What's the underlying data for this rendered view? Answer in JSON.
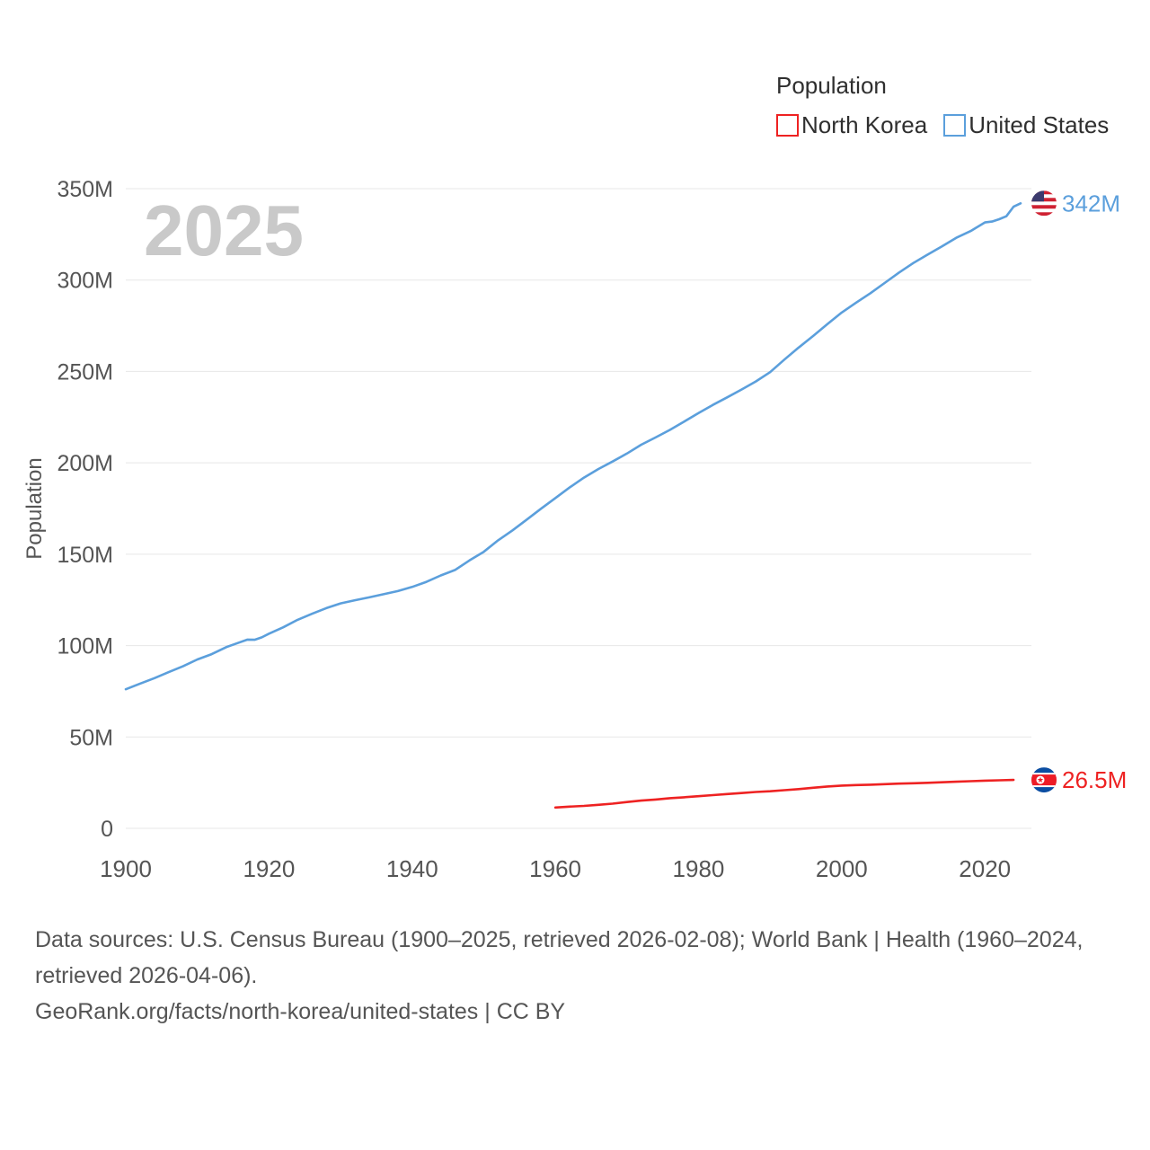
{
  "legend": {
    "title": "Population",
    "items": [
      {
        "label": "North Korea",
        "color": "#ee2222"
      },
      {
        "label": "United States",
        "color": "#5b9fdc"
      }
    ]
  },
  "footer": {
    "sources": "Data sources: U.S. Census Bureau (1900–2025, retrieved 2026-02-08); World Bank | Health (1960–2024, retrieved 2026-04-06).",
    "attribution": "GeoRank.org/facts/north-korea/united-states | CC BY"
  },
  "chart_data": {
    "type": "line",
    "title": "",
    "xlabel": "",
    "ylabel": "Population",
    "year_watermark": "2025",
    "legend_title": "Population",
    "legend_position": "top-right",
    "grid": true,
    "y_unit": "millions",
    "xlim": [
      1900,
      2026.5
    ],
    "ylim": [
      0,
      350
    ],
    "x_ticks": [
      1900,
      1920,
      1940,
      1960,
      1980,
      2000,
      2020
    ],
    "y_ticks": [
      {
        "value": 0,
        "label": "0"
      },
      {
        "value": 50,
        "label": "50M"
      },
      {
        "value": 100,
        "label": "100M"
      },
      {
        "value": 150,
        "label": "150M"
      },
      {
        "value": 200,
        "label": "200M"
      },
      {
        "value": 250,
        "label": "250M"
      },
      {
        "value": 300,
        "label": "300M"
      },
      {
        "value": 350,
        "label": "350M"
      }
    ],
    "series": [
      {
        "id": "north-korea",
        "name": "North Korea",
        "color": "#ee2222",
        "end_label": "26.5M",
        "points": [
          [
            1960,
            11.4
          ],
          [
            1962,
            11.9
          ],
          [
            1964,
            12.3
          ],
          [
            1966,
            12.9
          ],
          [
            1968,
            13.5
          ],
          [
            1970,
            14.4
          ],
          [
            1972,
            15.2
          ],
          [
            1974,
            15.8
          ],
          [
            1976,
            16.5
          ],
          [
            1978,
            17.0
          ],
          [
            1980,
            17.6
          ],
          [
            1982,
            18.2
          ],
          [
            1984,
            18.8
          ],
          [
            1986,
            19.3
          ],
          [
            1988,
            19.9
          ],
          [
            1990,
            20.3
          ],
          [
            1992,
            20.9
          ],
          [
            1994,
            21.5
          ],
          [
            1996,
            22.2
          ],
          [
            1998,
            22.9
          ],
          [
            2000,
            23.4
          ],
          [
            2002,
            23.7
          ],
          [
            2004,
            23.9
          ],
          [
            2006,
            24.2
          ],
          [
            2008,
            24.5
          ],
          [
            2010,
            24.7
          ],
          [
            2012,
            24.9
          ],
          [
            2014,
            25.2
          ],
          [
            2016,
            25.5
          ],
          [
            2018,
            25.8
          ],
          [
            2020,
            26.1
          ],
          [
            2022,
            26.3
          ],
          [
            2024,
            26.5
          ]
        ]
      },
      {
        "id": "united-states",
        "name": "United States",
        "color": "#5b9fdc",
        "end_label": "342M",
        "points": [
          [
            1900,
            76.1
          ],
          [
            1902,
            79.2
          ],
          [
            1904,
            82.2
          ],
          [
            1906,
            85.5
          ],
          [
            1908,
            88.7
          ],
          [
            1910,
            92.4
          ],
          [
            1912,
            95.3
          ],
          [
            1914,
            99.1
          ],
          [
            1916,
            101.9
          ],
          [
            1917,
            103.3
          ],
          [
            1918,
            103.2
          ],
          [
            1919,
            104.5
          ],
          [
            1920,
            106.5
          ],
          [
            1922,
            110.0
          ],
          [
            1924,
            114.1
          ],
          [
            1926,
            117.4
          ],
          [
            1928,
            120.5
          ],
          [
            1930,
            123.1
          ],
          [
            1932,
            124.8
          ],
          [
            1934,
            126.4
          ],
          [
            1936,
            128.1
          ],
          [
            1938,
            129.8
          ],
          [
            1940,
            132.1
          ],
          [
            1942,
            134.9
          ],
          [
            1944,
            138.4
          ],
          [
            1946,
            141.4
          ],
          [
            1948,
            146.6
          ],
          [
            1950,
            151.3
          ],
          [
            1952,
            157.6
          ],
          [
            1954,
            163.0
          ],
          [
            1956,
            168.9
          ],
          [
            1958,
            174.9
          ],
          [
            1960,
            180.7
          ],
          [
            1962,
            186.5
          ],
          [
            1964,
            191.9
          ],
          [
            1966,
            196.6
          ],
          [
            1968,
            200.7
          ],
          [
            1970,
            205.1
          ],
          [
            1972,
            209.9
          ],
          [
            1974,
            213.9
          ],
          [
            1976,
            218.0
          ],
          [
            1978,
            222.6
          ],
          [
            1980,
            227.2
          ],
          [
            1982,
            231.7
          ],
          [
            1984,
            235.8
          ],
          [
            1986,
            240.1
          ],
          [
            1988,
            244.5
          ],
          [
            1990,
            249.6
          ],
          [
            1992,
            256.5
          ],
          [
            1994,
            263.1
          ],
          [
            1996,
            269.4
          ],
          [
            1998,
            275.9
          ],
          [
            2000,
            282.2
          ],
          [
            2002,
            287.6
          ],
          [
            2004,
            292.8
          ],
          [
            2006,
            298.4
          ],
          [
            2008,
            304.1
          ],
          [
            2010,
            309.3
          ],
          [
            2012,
            313.9
          ],
          [
            2014,
            318.4
          ],
          [
            2016,
            323.1
          ],
          [
            2018,
            326.8
          ],
          [
            2020,
            331.5
          ],
          [
            2021,
            332.0
          ],
          [
            2022,
            333.3
          ],
          [
            2023,
            334.9
          ],
          [
            2024,
            340.1
          ],
          [
            2025,
            342.0
          ]
        ]
      }
    ]
  }
}
